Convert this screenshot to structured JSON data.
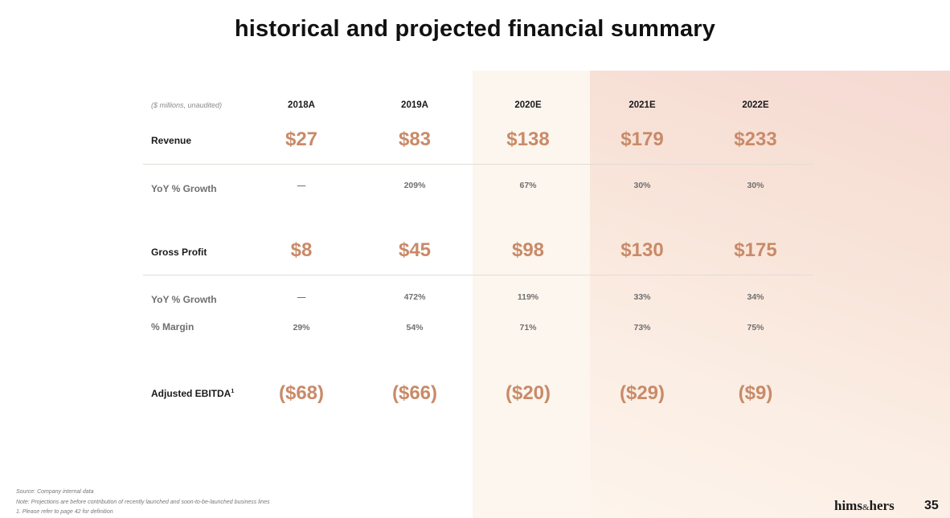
{
  "title": "historical and projected financial summary",
  "table": {
    "units_note": "($ millions, unaudited)",
    "years": [
      "2018A",
      "2019A",
      "2020E",
      "2021E",
      "2022E"
    ],
    "revenue": {
      "label": "Revenue",
      "values": [
        "$27",
        "$83",
        "$138",
        "$179",
        "$233"
      ]
    },
    "revenue_growth": {
      "label": "YoY % Growth",
      "values": [
        "—",
        "209%",
        "67%",
        "30%",
        "30%"
      ]
    },
    "gross_profit": {
      "label": "Gross Profit",
      "values": [
        "$8",
        "$45",
        "$98",
        "$130",
        "$175"
      ]
    },
    "gross_profit_growth": {
      "label": "YoY % Growth",
      "values": [
        "—",
        "472%",
        "119%",
        "33%",
        "34%"
      ]
    },
    "margin": {
      "label": "% Margin",
      "values": [
        "29%",
        "54%",
        "71%",
        "73%",
        "75%"
      ]
    },
    "ebitda": {
      "label": "Adjusted EBITDA",
      "footnote_marker": "1",
      "values": [
        "($68)",
        "($66)",
        "($20)",
        "($29)",
        "($9)"
      ]
    }
  },
  "footnotes": [
    "Source: Company internal data",
    "Note: Projections are before contribution of recently launched and soon-to-be-launched business lines",
    "1. Please refer to page 42 for definition"
  ],
  "logo": {
    "part1": "hims",
    "amp": "&",
    "part2": "hers"
  },
  "page_number": "35",
  "colors": {
    "accent": "#c98a68",
    "band_2020": "#fcf6ee",
    "band_projection": "#f5d9d2"
  }
}
